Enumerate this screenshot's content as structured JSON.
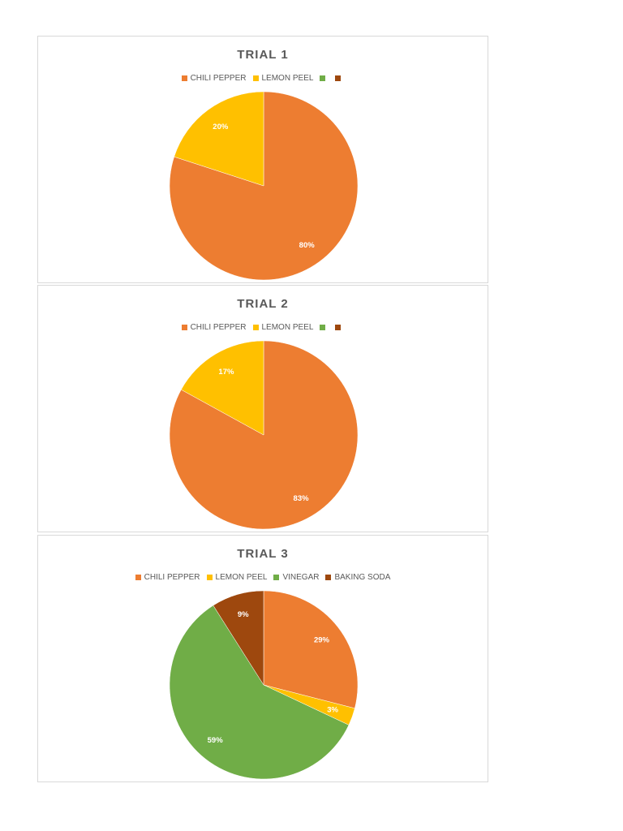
{
  "colors": {
    "chili_pepper": "#ED7D31",
    "lemon_peel": "#FFC000",
    "vinegar": "#70AD47",
    "baking_soda": "#9E480E"
  },
  "chart_data": [
    {
      "type": "pie",
      "title": "TRIAL 1",
      "categories": [
        "CHILI PEPPER",
        "LEMON PEEL",
        "",
        ""
      ],
      "values": [
        80,
        20,
        0,
        0
      ],
      "labels": [
        "80%",
        "20%",
        "",
        ""
      ],
      "colors": [
        "#ED7D31",
        "#FFC000",
        "#70AD47",
        "#9E480E"
      ],
      "legend": "top"
    },
    {
      "type": "pie",
      "title": "TRIAL 2",
      "categories": [
        "CHILI PEPPER",
        "LEMON PEEL",
        "",
        ""
      ],
      "values": [
        83,
        17,
        0,
        0
      ],
      "labels": [
        "83%",
        "17%",
        "",
        ""
      ],
      "colors": [
        "#ED7D31",
        "#FFC000",
        "#70AD47",
        "#9E480E"
      ],
      "legend": "top"
    },
    {
      "type": "pie",
      "title": "TRIAL 3",
      "categories": [
        "CHILI PEPPER",
        "LEMON PEEL",
        "VINEGAR",
        "BAKING SODA"
      ],
      "values": [
        29,
        3,
        59,
        9
      ],
      "labels": [
        "29%",
        "3%",
        "59%",
        "9%"
      ],
      "colors": [
        "#ED7D31",
        "#FFC000",
        "#70AD47",
        "#9E480E"
      ],
      "legend": "top"
    }
  ]
}
